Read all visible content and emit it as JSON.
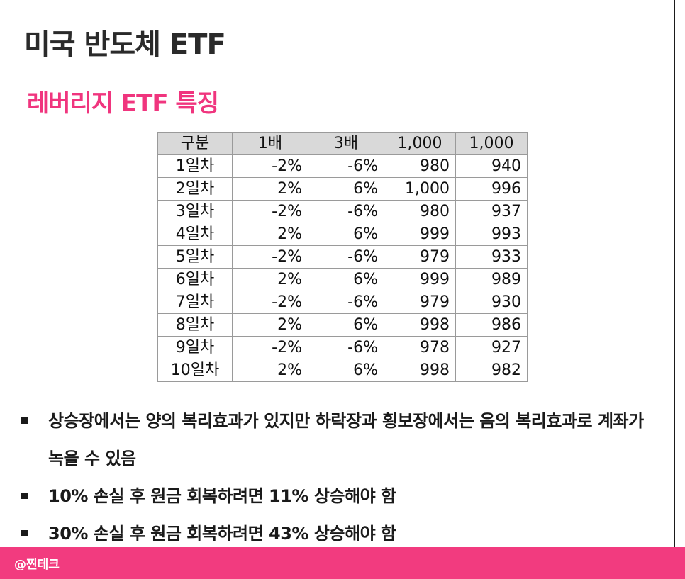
{
  "title": "미국 반도체 ETF",
  "subtitle": "레버리지 ETF 특징",
  "table": {
    "headers": [
      "구분",
      "1배",
      "3배",
      "1,000",
      "1,000"
    ],
    "rows": [
      [
        "1일차",
        "-2%",
        "-6%",
        "980",
        "940"
      ],
      [
        "2일차",
        "2%",
        "6%",
        "1,000",
        "996"
      ],
      [
        "3일차",
        "-2%",
        "-6%",
        "980",
        "937"
      ],
      [
        "4일차",
        "2%",
        "6%",
        "999",
        "993"
      ],
      [
        "5일차",
        "-2%",
        "-6%",
        "979",
        "933"
      ],
      [
        "6일차",
        "2%",
        "6%",
        "999",
        "989"
      ],
      [
        "7일차",
        "-2%",
        "-6%",
        "979",
        "930"
      ],
      [
        "8일차",
        "2%",
        "6%",
        "998",
        "986"
      ],
      [
        "9일차",
        "-2%",
        "-6%",
        "978",
        "927"
      ],
      [
        "10일차",
        "2%",
        "6%",
        "998",
        "982"
      ]
    ]
  },
  "bullets": [
    "상승장에서는 양의 복리효과가 있지만 하락장과 횡보장에서는 음의 복리효과로 계좌가 녹을 수 있음",
    "10% 손실 후 원금 회복하려면 11% 상승해야 함",
    "30% 손실 후 원금 회복하려면 43% 상승해야 함"
  ],
  "footer": {
    "handle": "@찐테크"
  },
  "colors": {
    "accent": "#f0357e",
    "footer_bar": "#f23b7f",
    "header_bg": "#d9d9d9"
  }
}
